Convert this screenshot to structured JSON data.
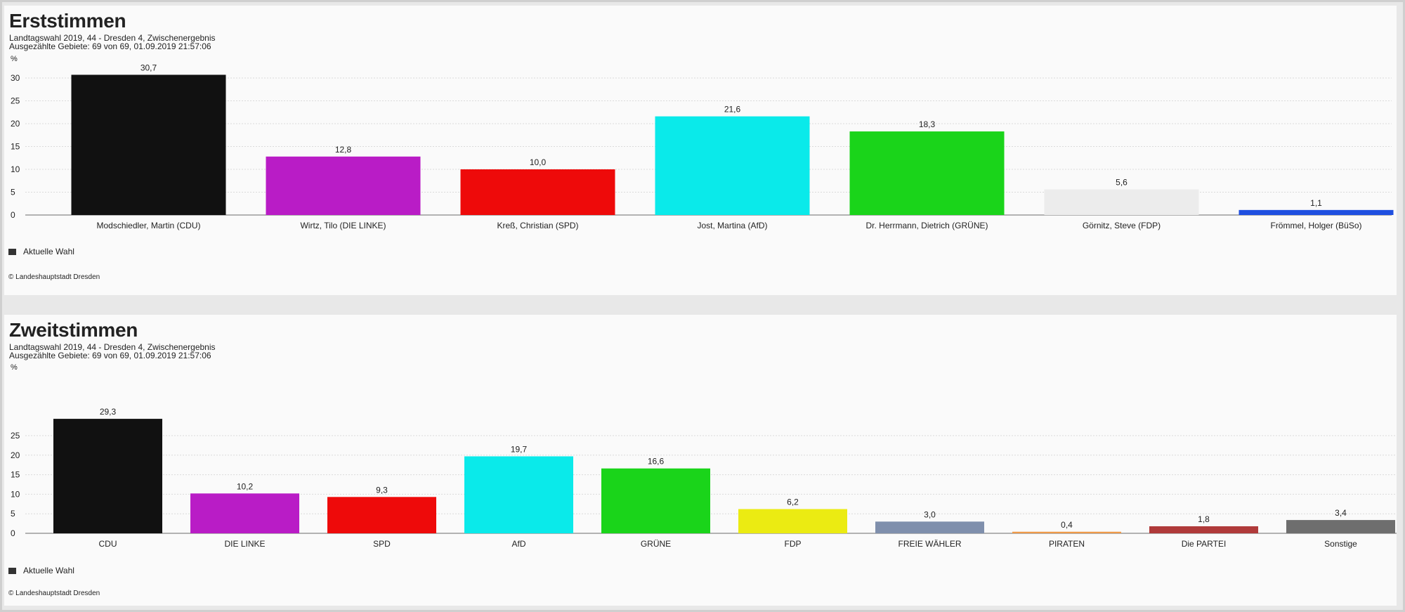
{
  "chart_data": [
    {
      "type": "bar",
      "title": "Erststimmen",
      "subtitle_1": "Landtagswahl 2019, 44 - Dresden 4, Zwischenergebnis",
      "subtitle_2": "Ausgezählte Gebiete: 69 von 69, 01.09.2019 21:57:06",
      "ylabel": "%",
      "ylim": [
        0,
        31
      ],
      "yticks": [
        "0",
        "5",
        "10",
        "15",
        "20",
        "25",
        "30"
      ],
      "categories": [
        "Modschiedler, Martin (CDU)",
        "Wirtz, Tilo (DIE LINKE)",
        "Kreß, Christian (SPD)",
        "Jost, Martina (AfD)",
        "Dr. Herrmann, Dietrich (GRÜNE)",
        "Görnitz, Steve (FDP)",
        "Frömmel, Holger (BüSo)"
      ],
      "values": [
        30.7,
        12.8,
        10.0,
        21.6,
        18.3,
        5.6,
        1.1
      ],
      "value_labels": [
        "30,7",
        "12,8",
        "10,0",
        "21,6",
        "18,3",
        "5,6",
        "1,1"
      ],
      "colors": [
        "#111111",
        "#b91cc6",
        "#ee0a0a",
        "#0aeaea",
        "#1ad41a",
        "#ececec",
        "#1f4fe0"
      ],
      "legend": "Aktuelle Wahl",
      "grid": true
    },
    {
      "type": "bar",
      "title": "Zweitstimmen",
      "subtitle_1": "Landtagswahl 2019, 44 - Dresden 4, Zwischenergebnis",
      "subtitle_2": "Ausgezählte Gebiete: 69 von 69, 01.09.2019 21:57:06",
      "ylabel": "%",
      "ylim": [
        0,
        30
      ],
      "yticks": [
        "0",
        "5",
        "10",
        "15",
        "20",
        "25"
      ],
      "categories": [
        "CDU",
        "DIE LINKE",
        "SPD",
        "AfD",
        "GRÜNE",
        "FDP",
        "FREIE WÄHLER",
        "PIRATEN",
        "Die PARTEI",
        "Sonstige"
      ],
      "values": [
        29.3,
        10.2,
        9.3,
        19.7,
        16.6,
        6.2,
        3.0,
        0.4,
        1.8,
        3.4
      ],
      "value_labels": [
        "29,3",
        "10,2",
        "9,3",
        "19,7",
        "16,6",
        "6,2",
        "3,0",
        "0,4",
        "1,8",
        "3,4"
      ],
      "colors": [
        "#111111",
        "#b91cc6",
        "#ee0a0a",
        "#0aeaea",
        "#1ad41a",
        "#ebeb12",
        "#7f8fac",
        "#ee9a48",
        "#b03a3a",
        "#6e6e6e"
      ],
      "legend": "Aktuelle Wahl",
      "grid": true
    }
  ],
  "copyright": "© Landeshauptstadt Dresden"
}
